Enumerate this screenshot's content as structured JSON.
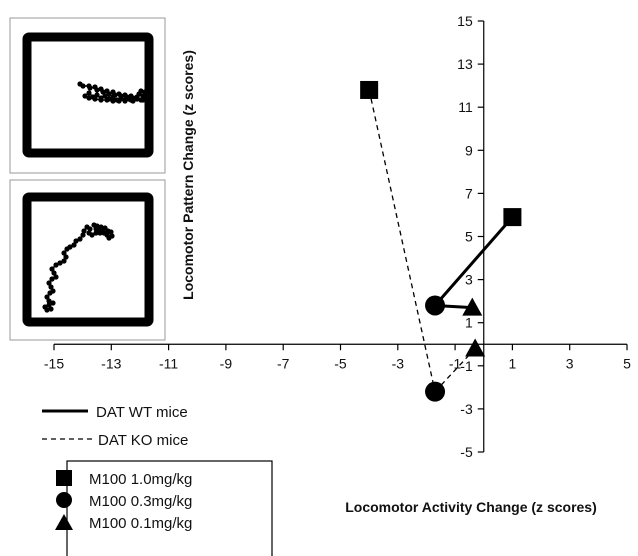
{
  "chart_data": {
    "type": "scatter",
    "xlabel": "Locomotor Activity Change (z scores)",
    "ylabel": "Locomotor Pattern Change (z scores)",
    "xlim": [
      -15,
      5
    ],
    "ylim": [
      -5,
      15
    ],
    "xticks": [
      -15,
      -13,
      -11,
      -9,
      -7,
      -5,
      -3,
      -1,
      1,
      3,
      5
    ],
    "yticks": [
      -5,
      -3,
      -1,
      1,
      3,
      5,
      7,
      9,
      11,
      13,
      15
    ],
    "line_legend": [
      {
        "label": "DAT WT mice",
        "style": "solid"
      },
      {
        "label": "DAT KO mice",
        "style": "dashed"
      }
    ],
    "marker_legend": [
      {
        "label": "M100 1.0mg/kg",
        "marker": "square"
      },
      {
        "label": "M100 0.3mg/kg",
        "marker": "circle"
      },
      {
        "label": "M100 0.1mg/kg",
        "marker": "triangle"
      }
    ],
    "series": [
      {
        "line": "solid",
        "points": [
          {
            "dose": "M100 1.0mg/kg",
            "marker": "square",
            "x": 1.0,
            "y": 5.9
          },
          {
            "dose": "M100 0.3mg/kg",
            "marker": "circle",
            "x": -1.7,
            "y": 1.8
          },
          {
            "dose": "M100 0.1mg/kg",
            "marker": "triangle",
            "x": -0.4,
            "y": 1.7
          }
        ]
      },
      {
        "line": "dashed",
        "points": [
          {
            "dose": "M100 1.0mg/kg",
            "marker": "square",
            "x": -4.0,
            "y": 11.8
          },
          {
            "dose": "M100 0.3mg/kg",
            "marker": "circle",
            "x": -1.7,
            "y": -2.2
          },
          {
            "dose": "M100 0.1mg/kg",
            "marker": "triangle",
            "x": -0.3,
            "y": -0.2
          }
        ]
      }
    ],
    "segments": [
      {
        "line": "solid",
        "from": [
          -1.7,
          1.8
        ],
        "to": [
          1.0,
          5.9
        ]
      },
      {
        "line": "solid",
        "from": [
          -1.7,
          1.8
        ],
        "to": [
          -0.4,
          1.7
        ]
      },
      {
        "line": "dashed",
        "from": [
          -4.0,
          11.8
        ],
        "to": [
          -1.7,
          -2.2
        ]
      },
      {
        "line": "dashed",
        "from": [
          -1.7,
          -2.2
        ],
        "to": [
          -0.3,
          -0.2
        ]
      }
    ]
  },
  "insets": [
    {
      "trace": [
        [
          -7,
          -11
        ],
        [
          -4,
          -9
        ],
        [
          2,
          -9
        ],
        [
          3,
          -7
        ],
        [
          8,
          -8
        ],
        [
          10,
          -5
        ],
        [
          14,
          -6
        ],
        [
          16,
          -3
        ],
        [
          20,
          -4
        ],
        [
          22,
          -1
        ],
        [
          26,
          -3
        ],
        [
          28,
          0
        ],
        [
          32,
          -1
        ],
        [
          34,
          1
        ],
        [
          38,
          0
        ],
        [
          40,
          2
        ],
        [
          44,
          1
        ],
        [
          46,
          3
        ],
        [
          50,
          2
        ],
        [
          52,
          -1
        ],
        [
          56,
          1
        ],
        [
          58,
          4
        ],
        [
          54,
          5
        ],
        [
          50,
          3
        ],
        [
          46,
          6
        ],
        [
          42,
          4
        ],
        [
          38,
          6
        ],
        [
          34,
          3
        ],
        [
          30,
          5
        ],
        [
          26,
          2
        ],
        [
          22,
          4
        ],
        [
          18,
          1
        ],
        [
          14,
          3
        ],
        [
          10,
          0
        ],
        [
          6,
          2
        ],
        [
          2,
          -2
        ],
        [
          -2,
          1
        ],
        [
          2,
          3
        ],
        [
          8,
          4
        ],
        [
          14,
          5
        ],
        [
          20,
          5
        ],
        [
          26,
          6
        ],
        [
          32,
          6
        ],
        [
          38,
          5
        ],
        [
          44,
          5
        ],
        [
          50,
          4
        ],
        [
          56,
          5
        ],
        [
          60,
          3
        ],
        [
          63,
          -2
        ],
        [
          62,
          -5
        ],
        [
          58,
          -3
        ],
        [
          54,
          -4
        ]
      ]
    },
    {
      "trace": [
        [
          -42,
          49
        ],
        [
          -40,
          52
        ],
        [
          -36,
          51
        ],
        [
          -38,
          47
        ],
        [
          -34,
          45
        ],
        [
          -38,
          43
        ],
        [
          -40,
          39
        ],
        [
          -37,
          35
        ],
        [
          -34,
          33
        ],
        [
          -36,
          29
        ],
        [
          -38,
          25
        ],
        [
          -35,
          21
        ],
        [
          -31,
          19
        ],
        [
          -33,
          15
        ],
        [
          -35,
          11
        ],
        [
          -31,
          7
        ],
        [
          -27,
          5
        ],
        [
          -23,
          3
        ],
        [
          -21,
          -1
        ],
        [
          -23,
          -5
        ],
        [
          -20,
          -9
        ],
        [
          -17,
          -11
        ],
        [
          -13,
          -13
        ],
        [
          -11,
          -17
        ],
        [
          -7,
          -19
        ],
        [
          -4,
          -23
        ],
        [
          -3,
          -27
        ],
        [
          0,
          -31
        ],
        [
          3,
          -29
        ],
        [
          2,
          -25
        ],
        [
          5,
          -23
        ],
        [
          9,
          -25
        ],
        [
          12,
          -28
        ],
        [
          10,
          -32
        ],
        [
          14,
          -31
        ],
        [
          18,
          -30
        ],
        [
          21,
          -27
        ],
        [
          24,
          -26
        ],
        [
          25,
          -22
        ],
        [
          22,
          -20
        ],
        [
          20,
          -23
        ],
        [
          17,
          -25
        ],
        [
          15,
          -28
        ],
        [
          13,
          -25
        ],
        [
          9,
          -29
        ],
        [
          7,
          -33
        ]
      ]
    }
  ]
}
